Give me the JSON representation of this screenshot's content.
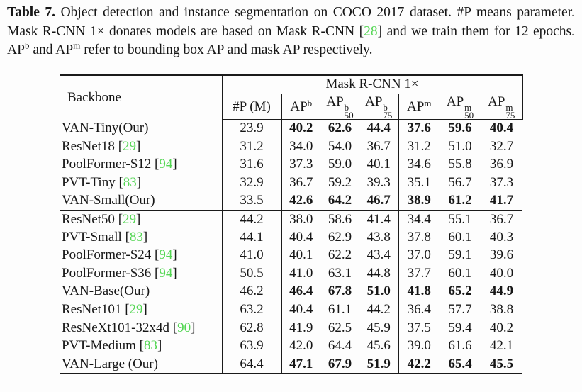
{
  "caption": {
    "label": "Table 7.",
    "seg1": "Object detection and instance segmentation on COCO 2017 dataset. #P means parameter. Mask R-CNN 1× donates models are based on Mask R-CNN",
    "cite": "28",
    "seg2": "and we train them for 12 epochs. AP",
    "sup1": "b",
    "seg3": "and AP",
    "sup2": "m",
    "seg4": "refer to bounding box AP and mask AP respectively."
  },
  "table": {
    "header": {
      "backbone": "Backbone",
      "group_title": "Mask R-CNN 1×",
      "params": "#P (M)",
      "cols": [
        {
          "base": "AP",
          "sup": "b",
          "sub": ""
        },
        {
          "base": "AP",
          "sup": "b",
          "sub": "50"
        },
        {
          "base": "AP",
          "sup": "b",
          "sub": "75"
        },
        {
          "base": "AP",
          "sup": "m",
          "sub": ""
        },
        {
          "base": "AP",
          "sup": "m",
          "sub": "50"
        },
        {
          "base": "AP",
          "sup": "m",
          "sub": "75"
        }
      ]
    },
    "accent_green": "#53d653",
    "groups": [
      {
        "rows": [
          {
            "name": "VAN-Tiny(Our)",
            "cite": "",
            "params": "23.9",
            "values": [
              "40.2",
              "62.6",
              "44.4",
              "37.6",
              "59.6",
              "40.4"
            ],
            "bold": true
          }
        ]
      },
      {
        "rows": [
          {
            "name": "ResNet18",
            "cite": "29",
            "params": "31.2",
            "values": [
              "34.0",
              "54.0",
              "36.7",
              "31.2",
              "51.0",
              "32.7"
            ],
            "bold": false
          },
          {
            "name": "PoolFormer-S12",
            "cite": "94",
            "params": "31.6",
            "values": [
              "37.3",
              "59.0",
              "40.1",
              "34.6",
              "55.8",
              "36.9"
            ],
            "bold": false
          },
          {
            "name": "PVT-Tiny",
            "cite": "83",
            "params": "32.9",
            "values": [
              "36.7",
              "59.2",
              "39.3",
              "35.1",
              "56.7",
              "37.3"
            ],
            "bold": false
          },
          {
            "name": "VAN-Small(Our)",
            "cite": "",
            "params": "33.5",
            "values": [
              "42.6",
              "64.2",
              "46.7",
              "38.9",
              "61.2",
              "41.7"
            ],
            "bold": true
          }
        ]
      },
      {
        "rows": [
          {
            "name": "ResNet50",
            "cite": "29",
            "params": "44.2",
            "values": [
              "38.0",
              "58.6",
              "41.4",
              "34.4",
              "55.1",
              "36.7"
            ],
            "bold": false
          },
          {
            "name": "PVT-Small",
            "cite": "83",
            "params": "44.1",
            "values": [
              "40.4",
              "62.9",
              "43.8",
              "37.8",
              "60.1",
              "40.3"
            ],
            "bold": false
          },
          {
            "name": "PoolFormer-S24",
            "cite": "94",
            "params": "41.0",
            "values": [
              "40.1",
              "62.2",
              "43.4",
              "37.0",
              "59.1",
              "39.6"
            ],
            "bold": false
          },
          {
            "name": "PoolFormer-S36",
            "cite": "94",
            "params": "50.5",
            "values": [
              "41.0",
              "63.1",
              "44.8",
              "37.7",
              "60.1",
              "40.0"
            ],
            "bold": false
          },
          {
            "name": "VAN-Base(Our)",
            "cite": "",
            "params": "46.2",
            "values": [
              "46.4",
              "67.8",
              "51.0",
              "41.8",
              "65.2",
              "44.9"
            ],
            "bold": true
          }
        ]
      },
      {
        "rows": [
          {
            "name": "ResNet101",
            "cite": "29",
            "params": "63.2",
            "values": [
              "40.4",
              "61.1",
              "44.2",
              "36.4",
              "57.7",
              "38.8"
            ],
            "bold": false
          },
          {
            "name": "ResNeXt101-32x4d",
            "cite": "90",
            "params": "62.8",
            "values": [
              "41.9",
              "62.5",
              "45.9",
              "37.5",
              "59.4",
              "40.2"
            ],
            "bold": false
          },
          {
            "name": "PVT-Medium",
            "cite": "83",
            "params": "63.9",
            "values": [
              "42.0",
              "64.4",
              "45.6",
              "39.0",
              "61.6",
              "42.1"
            ],
            "bold": false
          },
          {
            "name": "VAN-Large (Our)",
            "cite": "",
            "params": "64.4",
            "values": [
              "47.1",
              "67.9",
              "51.9",
              "42.2",
              "65.4",
              "45.5"
            ],
            "bold": true
          }
        ]
      }
    ]
  }
}
